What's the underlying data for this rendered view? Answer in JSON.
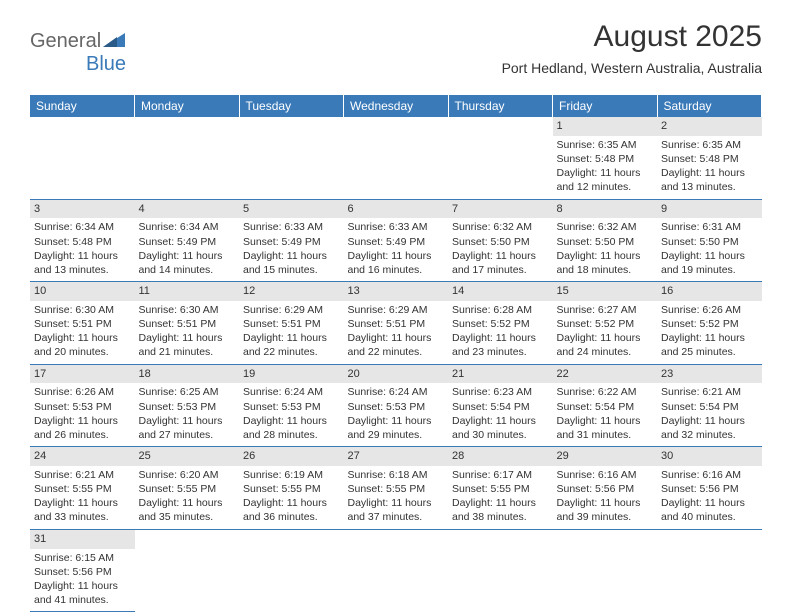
{
  "logo": {
    "part1": "General",
    "part2": "Blue"
  },
  "title": "August 2025",
  "subtitle": "Port Hedland, Western Australia, Australia",
  "colors": {
    "header_bg": "#3a7ab8",
    "header_text": "#ffffff",
    "daynum_bg": "#e6e6e6",
    "row_border": "#3a7ab8",
    "text": "#333333",
    "page_bg": "#ffffff"
  },
  "weekdays": [
    "Sunday",
    "Monday",
    "Tuesday",
    "Wednesday",
    "Thursday",
    "Friday",
    "Saturday"
  ],
  "weeks": [
    [
      null,
      null,
      null,
      null,
      null,
      {
        "n": "1",
        "sr": "Sunrise: 6:35 AM",
        "ss": "Sunset: 5:48 PM",
        "dl1": "Daylight: 11 hours",
        "dl2": "and 12 minutes."
      },
      {
        "n": "2",
        "sr": "Sunrise: 6:35 AM",
        "ss": "Sunset: 5:48 PM",
        "dl1": "Daylight: 11 hours",
        "dl2": "and 13 minutes."
      }
    ],
    [
      {
        "n": "3",
        "sr": "Sunrise: 6:34 AM",
        "ss": "Sunset: 5:48 PM",
        "dl1": "Daylight: 11 hours",
        "dl2": "and 13 minutes."
      },
      {
        "n": "4",
        "sr": "Sunrise: 6:34 AM",
        "ss": "Sunset: 5:49 PM",
        "dl1": "Daylight: 11 hours",
        "dl2": "and 14 minutes."
      },
      {
        "n": "5",
        "sr": "Sunrise: 6:33 AM",
        "ss": "Sunset: 5:49 PM",
        "dl1": "Daylight: 11 hours",
        "dl2": "and 15 minutes."
      },
      {
        "n": "6",
        "sr": "Sunrise: 6:33 AM",
        "ss": "Sunset: 5:49 PM",
        "dl1": "Daylight: 11 hours",
        "dl2": "and 16 minutes."
      },
      {
        "n": "7",
        "sr": "Sunrise: 6:32 AM",
        "ss": "Sunset: 5:50 PM",
        "dl1": "Daylight: 11 hours",
        "dl2": "and 17 minutes."
      },
      {
        "n": "8",
        "sr": "Sunrise: 6:32 AM",
        "ss": "Sunset: 5:50 PM",
        "dl1": "Daylight: 11 hours",
        "dl2": "and 18 minutes."
      },
      {
        "n": "9",
        "sr": "Sunrise: 6:31 AM",
        "ss": "Sunset: 5:50 PM",
        "dl1": "Daylight: 11 hours",
        "dl2": "and 19 minutes."
      }
    ],
    [
      {
        "n": "10",
        "sr": "Sunrise: 6:30 AM",
        "ss": "Sunset: 5:51 PM",
        "dl1": "Daylight: 11 hours",
        "dl2": "and 20 minutes."
      },
      {
        "n": "11",
        "sr": "Sunrise: 6:30 AM",
        "ss": "Sunset: 5:51 PM",
        "dl1": "Daylight: 11 hours",
        "dl2": "and 21 minutes."
      },
      {
        "n": "12",
        "sr": "Sunrise: 6:29 AM",
        "ss": "Sunset: 5:51 PM",
        "dl1": "Daylight: 11 hours",
        "dl2": "and 22 minutes."
      },
      {
        "n": "13",
        "sr": "Sunrise: 6:29 AM",
        "ss": "Sunset: 5:51 PM",
        "dl1": "Daylight: 11 hours",
        "dl2": "and 22 minutes."
      },
      {
        "n": "14",
        "sr": "Sunrise: 6:28 AM",
        "ss": "Sunset: 5:52 PM",
        "dl1": "Daylight: 11 hours",
        "dl2": "and 23 minutes."
      },
      {
        "n": "15",
        "sr": "Sunrise: 6:27 AM",
        "ss": "Sunset: 5:52 PM",
        "dl1": "Daylight: 11 hours",
        "dl2": "and 24 minutes."
      },
      {
        "n": "16",
        "sr": "Sunrise: 6:26 AM",
        "ss": "Sunset: 5:52 PM",
        "dl1": "Daylight: 11 hours",
        "dl2": "and 25 minutes."
      }
    ],
    [
      {
        "n": "17",
        "sr": "Sunrise: 6:26 AM",
        "ss": "Sunset: 5:53 PM",
        "dl1": "Daylight: 11 hours",
        "dl2": "and 26 minutes."
      },
      {
        "n": "18",
        "sr": "Sunrise: 6:25 AM",
        "ss": "Sunset: 5:53 PM",
        "dl1": "Daylight: 11 hours",
        "dl2": "and 27 minutes."
      },
      {
        "n": "19",
        "sr": "Sunrise: 6:24 AM",
        "ss": "Sunset: 5:53 PM",
        "dl1": "Daylight: 11 hours",
        "dl2": "and 28 minutes."
      },
      {
        "n": "20",
        "sr": "Sunrise: 6:24 AM",
        "ss": "Sunset: 5:53 PM",
        "dl1": "Daylight: 11 hours",
        "dl2": "and 29 minutes."
      },
      {
        "n": "21",
        "sr": "Sunrise: 6:23 AM",
        "ss": "Sunset: 5:54 PM",
        "dl1": "Daylight: 11 hours",
        "dl2": "and 30 minutes."
      },
      {
        "n": "22",
        "sr": "Sunrise: 6:22 AM",
        "ss": "Sunset: 5:54 PM",
        "dl1": "Daylight: 11 hours",
        "dl2": "and 31 minutes."
      },
      {
        "n": "23",
        "sr": "Sunrise: 6:21 AM",
        "ss": "Sunset: 5:54 PM",
        "dl1": "Daylight: 11 hours",
        "dl2": "and 32 minutes."
      }
    ],
    [
      {
        "n": "24",
        "sr": "Sunrise: 6:21 AM",
        "ss": "Sunset: 5:55 PM",
        "dl1": "Daylight: 11 hours",
        "dl2": "and 33 minutes."
      },
      {
        "n": "25",
        "sr": "Sunrise: 6:20 AM",
        "ss": "Sunset: 5:55 PM",
        "dl1": "Daylight: 11 hours",
        "dl2": "and 35 minutes."
      },
      {
        "n": "26",
        "sr": "Sunrise: 6:19 AM",
        "ss": "Sunset: 5:55 PM",
        "dl1": "Daylight: 11 hours",
        "dl2": "and 36 minutes."
      },
      {
        "n": "27",
        "sr": "Sunrise: 6:18 AM",
        "ss": "Sunset: 5:55 PM",
        "dl1": "Daylight: 11 hours",
        "dl2": "and 37 minutes."
      },
      {
        "n": "28",
        "sr": "Sunrise: 6:17 AM",
        "ss": "Sunset: 5:55 PM",
        "dl1": "Daylight: 11 hours",
        "dl2": "and 38 minutes."
      },
      {
        "n": "29",
        "sr": "Sunrise: 6:16 AM",
        "ss": "Sunset: 5:56 PM",
        "dl1": "Daylight: 11 hours",
        "dl2": "and 39 minutes."
      },
      {
        "n": "30",
        "sr": "Sunrise: 6:16 AM",
        "ss": "Sunset: 5:56 PM",
        "dl1": "Daylight: 11 hours",
        "dl2": "and 40 minutes."
      }
    ],
    [
      {
        "n": "31",
        "sr": "Sunrise: 6:15 AM",
        "ss": "Sunset: 5:56 PM",
        "dl1": "Daylight: 11 hours",
        "dl2": "and 41 minutes."
      },
      null,
      null,
      null,
      null,
      null,
      null
    ]
  ]
}
